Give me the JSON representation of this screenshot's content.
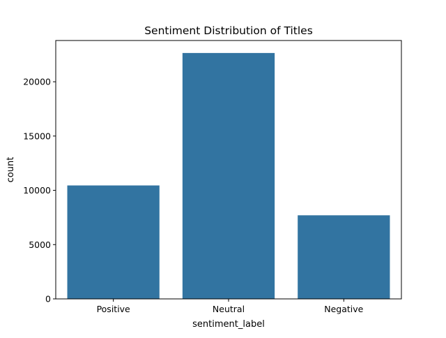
{
  "chart_data": {
    "type": "bar",
    "title": "Sentiment Distribution of Titles",
    "xlabel": "sentiment_label",
    "ylabel": "count",
    "categories": [
      "Positive",
      "Neutral",
      "Negative"
    ],
    "values": [
      10450,
      22650,
      7700
    ],
    "ylim": [
      0,
      23800
    ],
    "yticks": [
      0,
      5000,
      10000,
      15000,
      20000
    ],
    "bar_color": "#3274a1",
    "grid": false,
    "legend": "none"
  }
}
